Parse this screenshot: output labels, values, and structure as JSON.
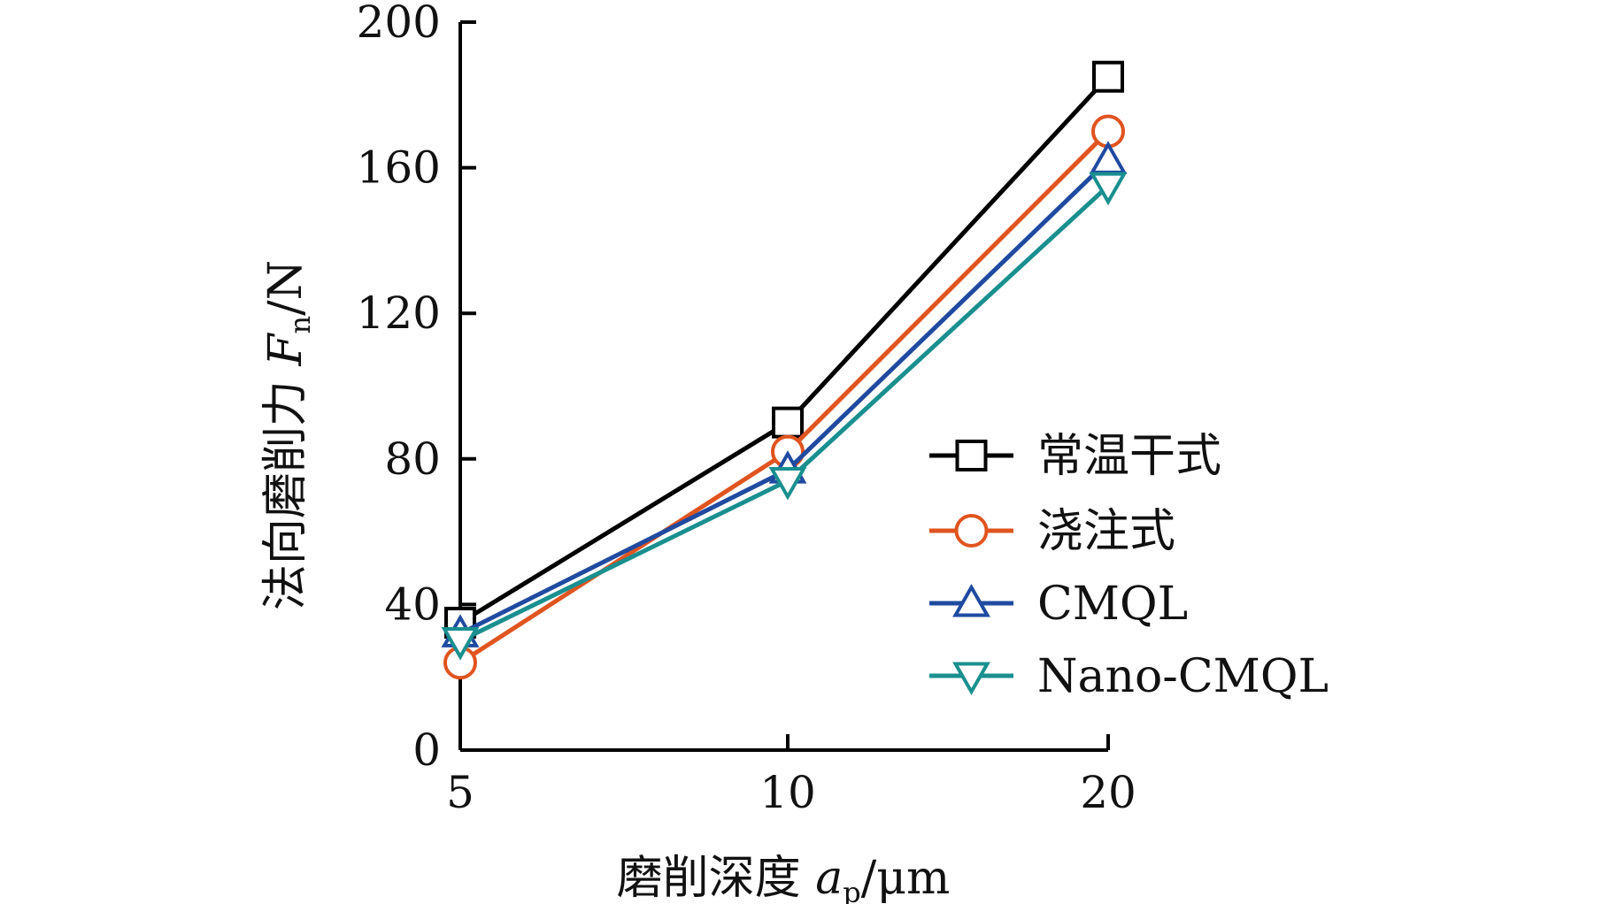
{
  "chart_data": {
    "type": "line",
    "x": [
      5,
      10,
      20
    ],
    "x_tick_labels": [
      "5",
      "10",
      "20"
    ],
    "y_ticks": [
      0,
      40,
      80,
      120,
      160,
      200
    ],
    "ylim": [
      0,
      200
    ],
    "xlabel": {
      "main": "磨削深度 ",
      "var": "a",
      "sub": "p",
      "unit": "/μm"
    },
    "ylabel": {
      "main": "法向磨削力 ",
      "var": "F",
      "sub": "n",
      "unit": "/N"
    },
    "grid": false,
    "legend_position": "right",
    "series": [
      {
        "name": "常温干式",
        "values": [
          35,
          90,
          185
        ],
        "color": "#000000",
        "marker": "square"
      },
      {
        "name": "浇注式",
        "values": [
          24,
          82,
          170
        ],
        "color": "#e0541f",
        "marker": "circle"
      },
      {
        "name": "CMQL",
        "values": [
          32,
          77,
          162
        ],
        "color": "#1f4aa0",
        "marker": "triangle-up"
      },
      {
        "name": "Nano-CMQL",
        "values": [
          30,
          74,
          155
        ],
        "color": "#1a8f8f",
        "marker": "triangle-down"
      }
    ]
  }
}
